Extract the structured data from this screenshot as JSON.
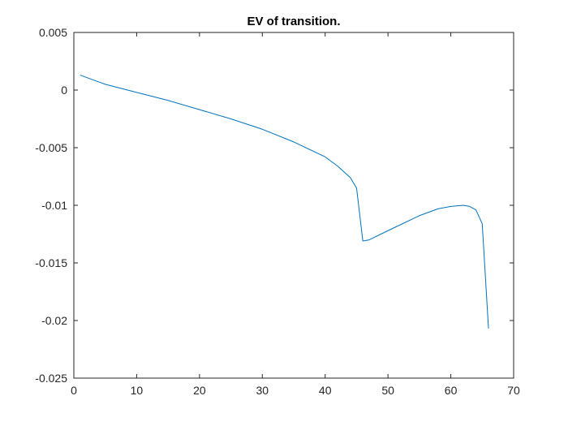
{
  "chart_data": {
    "type": "line",
    "title": "EV of transition.",
    "xlabel": "",
    "ylabel": "",
    "xlim": [
      0,
      70
    ],
    "ylim": [
      -0.025,
      0.005
    ],
    "xticks": [
      0,
      10,
      20,
      30,
      40,
      50,
      60,
      70
    ],
    "yticks": [
      -0.025,
      -0.02,
      -0.015,
      -0.01,
      -0.005,
      0,
      0.005
    ],
    "xtick_labels": [
      "0",
      "10",
      "20",
      "30",
      "40",
      "50",
      "60",
      "70"
    ],
    "ytick_labels": [
      "-0.025",
      "-0.02",
      "-0.015",
      "-0.01",
      "-0.005",
      "0",
      "0.005"
    ],
    "grid": false,
    "line_color": "#0072BD",
    "series": [
      {
        "x": [
          1,
          5,
          10,
          15,
          20,
          25,
          30,
          35,
          40,
          42,
          44,
          45,
          46,
          47,
          50,
          55,
          58,
          60,
          62,
          63,
          64,
          65,
          66
        ],
        "y": [
          0.0013,
          0.0005,
          -0.0002,
          -0.0009,
          -0.0017,
          -0.0025,
          -0.0034,
          -0.0045,
          -0.0058,
          -0.0066,
          -0.0076,
          -0.0085,
          -0.0131,
          -0.013,
          -0.0122,
          -0.0109,
          -0.0103,
          -0.0101,
          -0.01,
          -0.0101,
          -0.0104,
          -0.0116,
          -0.0207
        ]
      }
    ]
  }
}
